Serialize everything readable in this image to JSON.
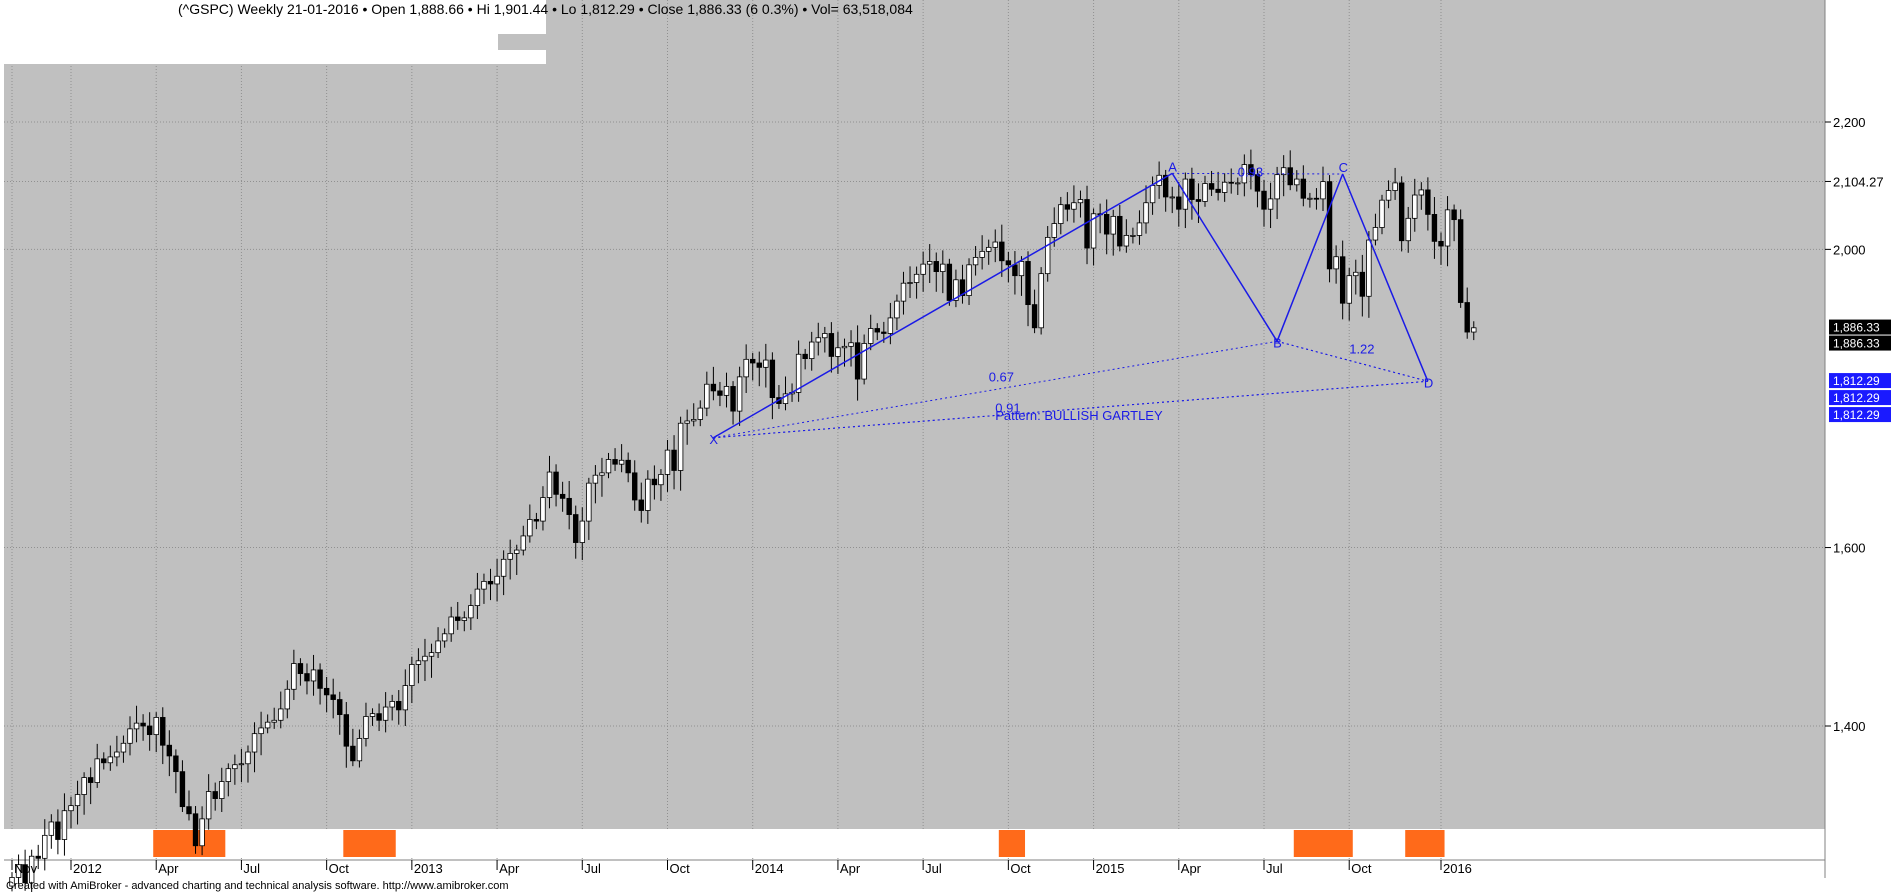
{
  "header": {
    "title": "(^GSPC) Weekly  21-01-2016  •  Open 1,888.66  •  Hi 1,901.44  •  Lo 1,812.29  •  Close 1,886.33 (6 0.3%)  •  Vol= 63,518,084"
  },
  "footer": {
    "credit": "Created with AmiBroker - advanced charting and technical analysis software. http://www.amibroker.com"
  },
  "colors": {
    "plot_bg": "#c0c0c0",
    "pattern": "#1a1ae6",
    "signal_yellow": "#ffff00",
    "signal_white": "#ffffff",
    "ribbon_orange": "#ff6a1a",
    "ribbon_white": "#ffffff"
  },
  "chart_data": {
    "type": "candlestick",
    "scale": "log",
    "ylim": [
      1230,
      2360
    ],
    "y_ticks": [
      "1,400",
      "1,600",
      "2,000",
      "2,104.27",
      "2,200"
    ],
    "y_tick_values": [
      1400,
      1600,
      2000,
      2104.27,
      2200
    ],
    "x_ticks": [
      "Nov",
      "2012",
      "Apr",
      "Jul",
      "Oct",
      "2013",
      "Apr",
      "Jul",
      "Oct",
      "2014",
      "Apr",
      "Jul",
      "Oct",
      "2015",
      "Apr",
      "Jul",
      "Oct",
      "2016"
    ],
    "x_tick_weeks": [
      0,
      9,
      22,
      35,
      48,
      61,
      74,
      87,
      100,
      113,
      126,
      139,
      152,
      165,
      178,
      191,
      204,
      218
    ],
    "grid": true,
    "closes": [
      1250,
      1262,
      1245,
      1270,
      1268,
      1290,
      1303,
      1286,
      1314,
      1319,
      1330,
      1347,
      1342,
      1366,
      1362,
      1368,
      1373,
      1382,
      1397,
      1403,
      1400,
      1391,
      1409,
      1380,
      1369,
      1353,
      1318,
      1311,
      1280,
      1306,
      1333,
      1326,
      1343,
      1356,
      1360,
      1361,
      1373,
      1392,
      1398,
      1404,
      1406,
      1418,
      1439,
      1467,
      1456,
      1448,
      1460,
      1440,
      1433,
      1428,
      1412,
      1379,
      1364,
      1387,
      1410,
      1413,
      1406,
      1420,
      1426,
      1417,
      1443,
      1466,
      1470,
      1475,
      1479,
      1492,
      1500,
      1519,
      1515,
      1518,
      1532,
      1551,
      1560,
      1557,
      1566,
      1586,
      1593,
      1597,
      1614,
      1634,
      1632,
      1661,
      1693,
      1665,
      1660,
      1640,
      1606,
      1632,
      1679,
      1689,
      1692,
      1709,
      1703,
      1708,
      1692,
      1658,
      1645,
      1684,
      1677,
      1690,
      1721,
      1695,
      1756,
      1759,
      1761,
      1776,
      1808,
      1799,
      1793,
      1805,
      1772,
      1818,
      1842,
      1837,
      1831,
      1841,
      1790,
      1782,
      1795,
      1797,
      1849,
      1843,
      1866,
      1872,
      1878,
      1846,
      1858,
      1860,
      1865,
      1815,
      1864,
      1885,
      1880,
      1878,
      1900,
      1924,
      1950,
      1951,
      1963,
      1978,
      1982,
      1967,
      1978,
      1925,
      1955,
      1932,
      1977,
      1988,
      1997,
      2003,
      2011,
      1983,
      1977,
      1961,
      1982,
      1919,
      1886,
      1964,
      2018,
      2039,
      2068,
      2061,
      2071,
      2076,
      2002,
      2054,
      2053,
      2023,
      2050,
      2005,
      2021,
      2021,
      2040,
      2071,
      2098,
      2114,
      2080,
      2080,
      2061,
      2108,
      2076,
      2073,
      2101,
      2092,
      2087,
      2103,
      2102,
      2102,
      2131,
      2115,
      2089,
      2061,
      2077,
      2115,
      2126,
      2099,
      2108,
      2078,
      2078,
      2077,
      2104,
      1971,
      1989,
      1921,
      1961,
      1966,
      1931,
      2014,
      2033,
      2075,
      2090,
      2102,
      2013,
      2047,
      2083,
      2091,
      2053,
      2012,
      2005,
      2060,
      2045,
      1922,
      1880,
      1886
    ],
    "pattern": {
      "name": "Pattern: BULLISH GARTLEY",
      "points": [
        {
          "label": "X",
          "week": 107,
          "price": 1737
        },
        {
          "label": "A",
          "week": 177,
          "price": 2117
        },
        {
          "label": "B",
          "week": 193,
          "price": 1867
        },
        {
          "label": "C",
          "week": 203,
          "price": 2116
        },
        {
          "label": "D",
          "week": 216,
          "price": 1812
        }
      ],
      "ratios": [
        {
          "label": "0.93",
          "week": 187,
          "price": 2112
        },
        {
          "label": "1.22",
          "week": 204,
          "price": 1850
        },
        {
          "label": "0.67",
          "week": 149,
          "price": 1812
        },
        {
          "label": "0.91",
          "week": 150,
          "price": 1770
        }
      ]
    },
    "price_labels": [
      "1,886.33",
      "1,886.33",
      "1,812.29",
      "1,812.29",
      "1,812.29"
    ]
  }
}
